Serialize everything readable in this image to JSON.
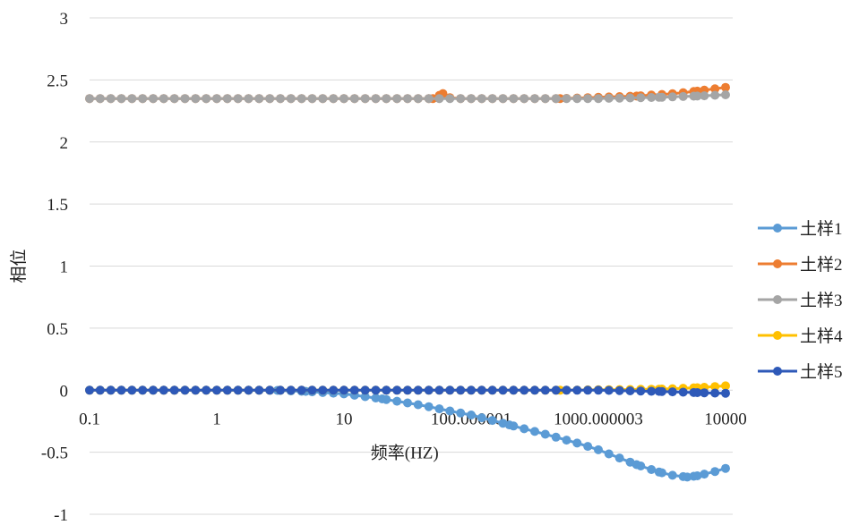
{
  "chart_data": {
    "type": "line",
    "xscale": "log",
    "xlabel": "频率(HZ)",
    "ylabel": "相位",
    "xlim": [
      0.1,
      10000
    ],
    "ylim": [
      -1,
      3
    ],
    "x_tick_labels": [
      "0.1",
      "1",
      "10",
      "100.000001",
      "1000.000003",
      "10000"
    ],
    "y_tick_labels": [
      "3",
      "2.5",
      "2",
      "1.5",
      "1",
      "0.5",
      "0",
      "-0.5",
      "-1"
    ],
    "y_ticks": [
      3,
      2.5,
      2,
      1.5,
      1,
      0.5,
      0,
      -0.5,
      -1
    ],
    "grid": "horizontal",
    "legend_position": "right",
    "series": [
      {
        "name": "土样1",
        "color": "#5B9BD5",
        "points": [
          [
            0.1,
            0
          ],
          [
            1,
            0
          ],
          [
            3,
            -0.002
          ],
          [
            5,
            -0.01
          ],
          [
            10,
            -0.03
          ],
          [
            20,
            -0.07
          ],
          [
            40,
            -0.12
          ],
          [
            70,
            -0.17
          ],
          [
            100,
            -0.2
          ],
          [
            200,
            -0.28
          ],
          [
            400,
            -0.36
          ],
          [
            700,
            -0.43
          ],
          [
            1000,
            -0.48
          ],
          [
            2000,
            -0.6
          ],
          [
            3000,
            -0.66
          ],
          [
            4000,
            -0.69
          ],
          [
            5000,
            -0.7
          ],
          [
            6000,
            -0.69
          ],
          [
            8000,
            -0.66
          ],
          [
            10000,
            -0.63
          ]
        ]
      },
      {
        "name": "土样2",
        "color": "#ED7D31",
        "points": [
          [
            0.1,
            2.35
          ],
          [
            50,
            2.35
          ],
          [
            60,
            2.39
          ],
          [
            70,
            2.35
          ],
          [
            500,
            2.35
          ],
          [
            1000,
            2.36
          ],
          [
            2000,
            2.37
          ],
          [
            4000,
            2.39
          ],
          [
            6000,
            2.41
          ],
          [
            10000,
            2.44
          ]
        ]
      },
      {
        "name": "土样3",
        "color": "#A5A5A5",
        "points": [
          [
            0.1,
            2.35
          ],
          [
            1000,
            2.35
          ],
          [
            3000,
            2.36
          ],
          [
            6000,
            2.37
          ],
          [
            10000,
            2.38
          ]
        ]
      },
      {
        "name": "土样4",
        "color": "#FFC000",
        "points": [
          [
            0.1,
            0
          ],
          [
            500,
            0
          ],
          [
            1000,
            0.003
          ],
          [
            3000,
            0.008
          ],
          [
            6000,
            0.02
          ],
          [
            10000,
            0.035
          ]
        ]
      },
      {
        "name": "土样5",
        "color": "#2E59B8",
        "points": [
          [
            0.1,
            0
          ],
          [
            1000,
            0
          ],
          [
            3000,
            -0.01
          ],
          [
            6000,
            -0.02
          ],
          [
            10000,
            -0.025
          ]
        ]
      }
    ]
  }
}
